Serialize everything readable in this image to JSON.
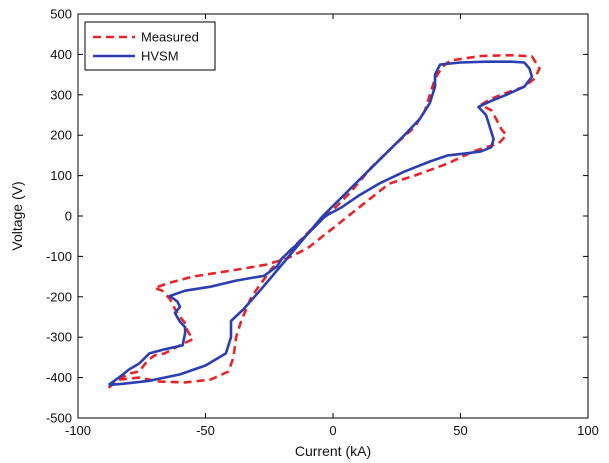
{
  "chart_data": {
    "type": "line",
    "title": "",
    "xlabel": "Current (kA)",
    "ylabel": "Voltage (V)",
    "xlim": [
      -100,
      100
    ],
    "ylim": [
      -500,
      500
    ],
    "xticks": [
      -100,
      -50,
      0,
      50,
      100
    ],
    "yticks": [
      -500,
      -400,
      -300,
      -200,
      -100,
      0,
      100,
      200,
      300,
      400,
      500
    ],
    "grid": false,
    "legend_position": "top-left",
    "series": [
      {
        "name": "Measured",
        "color": "#e8242a",
        "style": "dashed",
        "points": [
          [
            -88,
            -425
          ],
          [
            -84,
            -405
          ],
          [
            -80,
            -390
          ],
          [
            -76,
            -385
          ],
          [
            -73,
            -360
          ],
          [
            -70,
            -345
          ],
          [
            -66,
            -340
          ],
          [
            -60,
            -320
          ],
          [
            -55,
            -305
          ],
          [
            -57,
            -285
          ],
          [
            -58,
            -265
          ],
          [
            -60,
            -250
          ],
          [
            -62,
            -230
          ],
          [
            -64,
            -205
          ],
          [
            -67,
            -185
          ],
          [
            -70,
            -178
          ],
          [
            -64,
            -165
          ],
          [
            -55,
            -150
          ],
          [
            -45,
            -140
          ],
          [
            -35,
            -130
          ],
          [
            -26,
            -120
          ],
          [
            -18,
            -105
          ],
          [
            -10,
            -80
          ],
          [
            -2,
            -40
          ],
          [
            6,
            0
          ],
          [
            14,
            40
          ],
          [
            22,
            80
          ],
          [
            32,
            100
          ],
          [
            45,
            130
          ],
          [
            55,
            160
          ],
          [
            65,
            180
          ],
          [
            68,
            200
          ],
          [
            66,
            215
          ],
          [
            64,
            240
          ],
          [
            62,
            262
          ],
          [
            58,
            275
          ],
          [
            62,
            290
          ],
          [
            68,
            305
          ],
          [
            75,
            320
          ],
          [
            79,
            340
          ],
          [
            81,
            365
          ],
          [
            78,
            395
          ],
          [
            70,
            398
          ],
          [
            58,
            396
          ],
          [
            46,
            385
          ],
          [
            43,
            370
          ],
          [
            40,
            340
          ],
          [
            38,
            300
          ],
          [
            36,
            260
          ],
          [
            32,
            220
          ],
          [
            24,
            175
          ],
          [
            15,
            120
          ],
          [
            7,
            60
          ],
          [
            0,
            15
          ],
          [
            -8,
            -30
          ],
          [
            -16,
            -80
          ],
          [
            -24,
            -130
          ],
          [
            -32,
            -200
          ],
          [
            -36,
            -260
          ],
          [
            -38,
            -300
          ],
          [
            -39,
            -350
          ],
          [
            -41,
            -385
          ],
          [
            -48,
            -405
          ],
          [
            -58,
            -412
          ],
          [
            -68,
            -410
          ],
          [
            -76,
            -400
          ],
          [
            -84,
            -405
          ],
          [
            -88,
            -425
          ]
        ]
      },
      {
        "name": "HVSM",
        "color": "#2b3fb3",
        "style": "solid",
        "points": [
          [
            -88,
            -418
          ],
          [
            -84,
            -400
          ],
          [
            -80,
            -380
          ],
          [
            -76,
            -365
          ],
          [
            -72,
            -340
          ],
          [
            -66,
            -330
          ],
          [
            -59,
            -320
          ],
          [
            -58,
            -290
          ],
          [
            -58,
            -275
          ],
          [
            -60,
            -262
          ],
          [
            -62,
            -240
          ],
          [
            -60,
            -225
          ],
          [
            -61,
            -212
          ],
          [
            -64,
            -198
          ],
          [
            -58,
            -185
          ],
          [
            -48,
            -175
          ],
          [
            -38,
            -160
          ],
          [
            -27,
            -148
          ],
          [
            -22,
            -125
          ],
          [
            -20,
            -105
          ],
          [
            -15,
            -75
          ],
          [
            -10,
            -45
          ],
          [
            -3,
            0
          ],
          [
            3,
            20
          ],
          [
            10,
            50
          ],
          [
            18,
            80
          ],
          [
            28,
            110
          ],
          [
            38,
            135
          ],
          [
            45,
            150
          ],
          [
            52,
            155
          ],
          [
            58,
            160
          ],
          [
            62,
            170
          ],
          [
            63,
            190
          ],
          [
            62,
            210
          ],
          [
            61,
            230
          ],
          [
            60,
            250
          ],
          [
            57,
            270
          ],
          [
            62,
            285
          ],
          [
            68,
            300
          ],
          [
            75,
            320
          ],
          [
            78,
            345
          ],
          [
            77,
            365
          ],
          [
            75,
            380
          ],
          [
            70,
            382
          ],
          [
            60,
            382
          ],
          [
            50,
            380
          ],
          [
            42,
            375
          ],
          [
            40,
            350
          ],
          [
            40,
            320
          ],
          [
            38,
            280
          ],
          [
            34,
            240
          ],
          [
            28,
            200
          ],
          [
            20,
            150
          ],
          [
            12,
            100
          ],
          [
            4,
            50
          ],
          [
            -4,
            0
          ],
          [
            -12,
            -60
          ],
          [
            -20,
            -120
          ],
          [
            -28,
            -180
          ],
          [
            -35,
            -230
          ],
          [
            -40,
            -260
          ],
          [
            -40,
            -300
          ],
          [
            -42,
            -340
          ],
          [
            -50,
            -370
          ],
          [
            -60,
            -392
          ],
          [
            -72,
            -408
          ],
          [
            -82,
            -415
          ],
          [
            -88,
            -418
          ]
        ]
      }
    ]
  }
}
